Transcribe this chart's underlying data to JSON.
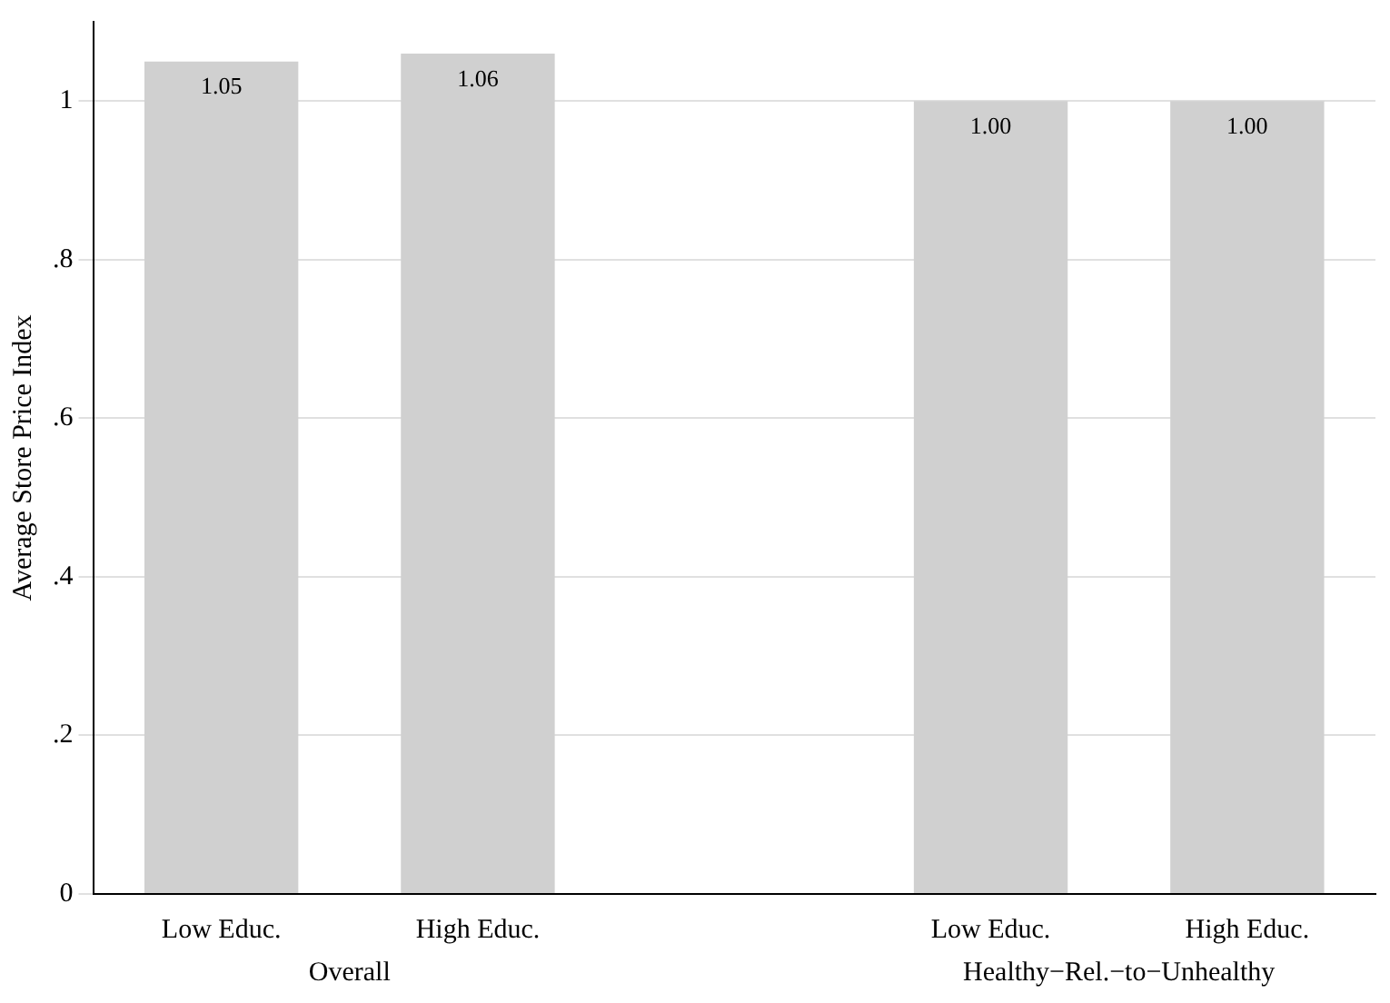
{
  "chart_data": {
    "type": "bar",
    "ylabel": "Average Store Price Index",
    "categories": [
      "Low Educ.",
      "High Educ.",
      null,
      "Low Educ.",
      "High Educ."
    ],
    "values": [
      1.05,
      1.06,
      null,
      1.0,
      1.0
    ],
    "value_labels": [
      "1.05",
      "1.06",
      null,
      "1.00",
      "1.00"
    ],
    "color": "#d0d0d0",
    "ylim": [
      0,
      1.1
    ],
    "yticks": [
      0,
      {
        "value": 0.2,
        "label": ".2"
      },
      {
        "value": 0.4,
        "label": ".4"
      },
      {
        "value": 0.6,
        "label": ".6"
      },
      {
        "value": 0.8,
        "label": ".8"
      },
      1
    ],
    "grid": "y",
    "annotations": [
      "Overall",
      "Healthy−Rel.−to−Unhealthy"
    ]
  }
}
